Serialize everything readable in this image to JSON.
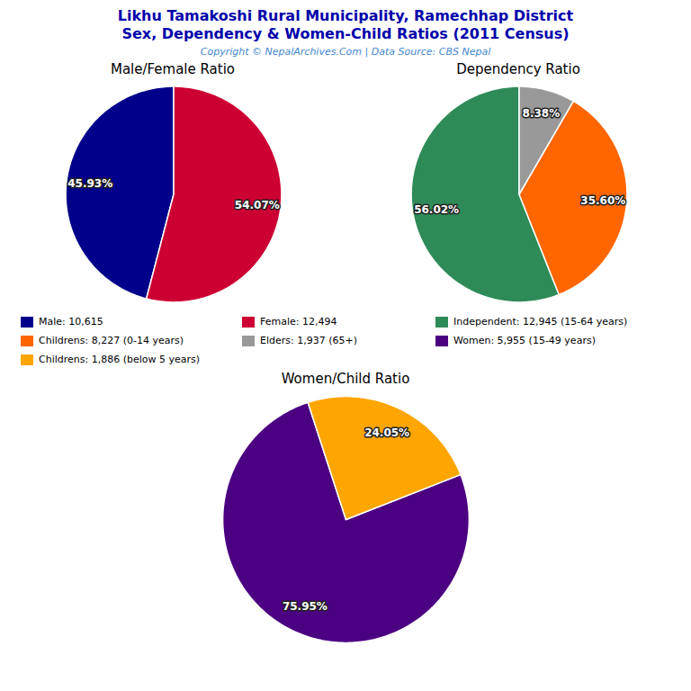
{
  "title": "Likhu Tamakoshi Rural Municipality, Ramechhap District",
  "subtitle": "Sex, Dependency & Women-Child Ratios (2011 Census)",
  "annotations": [
    "Copyright © NepalArchives.Com | Data Source: CBS Nepal"
  ],
  "chart_data": [
    {
      "type": "pie",
      "title": "Male/Female Ratio",
      "categories": [
        "Male: 10,615",
        "Female: 12,494"
      ],
      "values": [
        45.93,
        54.07
      ],
      "value_labels": [
        "45.93%",
        "54.07%"
      ],
      "colors": [
        "#00008B",
        "#CC0033"
      ],
      "data_labels": true,
      "legend": "bottom"
    },
    {
      "type": "pie",
      "title": "Dependency Ratio",
      "categories": [
        "Independent: 12,945 (15-64 years)",
        "Childrens: 8,227 (0-14 years)",
        "Elders: 1,937 (65+)"
      ],
      "values": [
        56.02,
        35.6,
        8.38
      ],
      "value_labels": [
        "56.02%",
        "35.60%",
        "8.38%"
      ],
      "colors": [
        "#2E8B57",
        "#FF6600",
        "#999999"
      ],
      "data_labels": true,
      "legend": "bottom"
    },
    {
      "type": "pie",
      "title": "Women/Child Ratio",
      "categories": [
        "Women: 5,955 (15-49 years)",
        "Childrens: 1,886 (below 5 years)"
      ],
      "values": [
        75.95,
        24.05
      ],
      "value_labels": [
        "75.95%",
        "24.05%"
      ],
      "colors": [
        "#4B0082",
        "#FFA500"
      ],
      "data_labels": true,
      "legend": "top"
    }
  ]
}
